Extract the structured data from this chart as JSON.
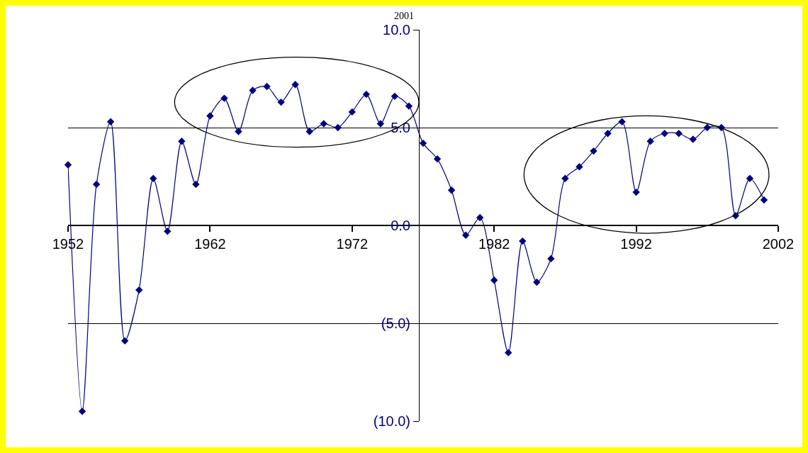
{
  "chart_data": {
    "type": "line",
    "title": "2001",
    "x": [
      1952,
      1953,
      1954,
      1955,
      1956,
      1957,
      1958,
      1959,
      1960,
      1961,
      1962,
      1963,
      1964,
      1965,
      1966,
      1967,
      1968,
      1969,
      1970,
      1971,
      1972,
      1973,
      1974,
      1975,
      1976,
      1977,
      1978,
      1979,
      1980,
      1981,
      1982,
      1983,
      1984,
      1985,
      1986,
      1987,
      1988,
      1989,
      1990,
      1991,
      1992,
      1993,
      1994,
      1995,
      1996,
      1997,
      1998,
      1999,
      2000,
      2001
    ],
    "series": [
      {
        "color": "#000080",
        "values": [
          3.1,
          -9.5,
          2.1,
          5.3,
          -5.9,
          -3.3,
          2.4,
          -0.3,
          4.3,
          2.1,
          5.6,
          6.5,
          4.8,
          6.9,
          7.1,
          6.3,
          7.2,
          4.8,
          5.2,
          5.0,
          5.8,
          6.7,
          5.2,
          6.6,
          6.1,
          4.2,
          3.4,
          1.8,
          -0.5,
          0.4,
          -2.8,
          -6.5,
          -0.8,
          -2.9,
          -1.7,
          2.4,
          3.0,
          3.8,
          4.7,
          5.3,
          1.7,
          4.3,
          4.7,
          4.7,
          4.4,
          5.0,
          5.0,
          0.5,
          2.4,
          1.3
        ]
      }
    ],
    "xlim": [
      1952,
      2002
    ],
    "xticks": [
      1952,
      1962,
      1972,
      1982,
      1992,
      2002
    ],
    "ylim": [
      -10,
      10
    ],
    "yticks": [
      {
        "value": -10,
        "label": "(10.0)"
      },
      {
        "value": -5,
        "label": "(5.0)"
      },
      {
        "value": 0,
        "label": "0.0"
      },
      {
        "value": 5,
        "label": "5.0"
      },
      {
        "value": 10,
        "label": "10.0"
      }
    ],
    "grid": "y",
    "marker": "diamond",
    "line_style": "solid"
  }
}
